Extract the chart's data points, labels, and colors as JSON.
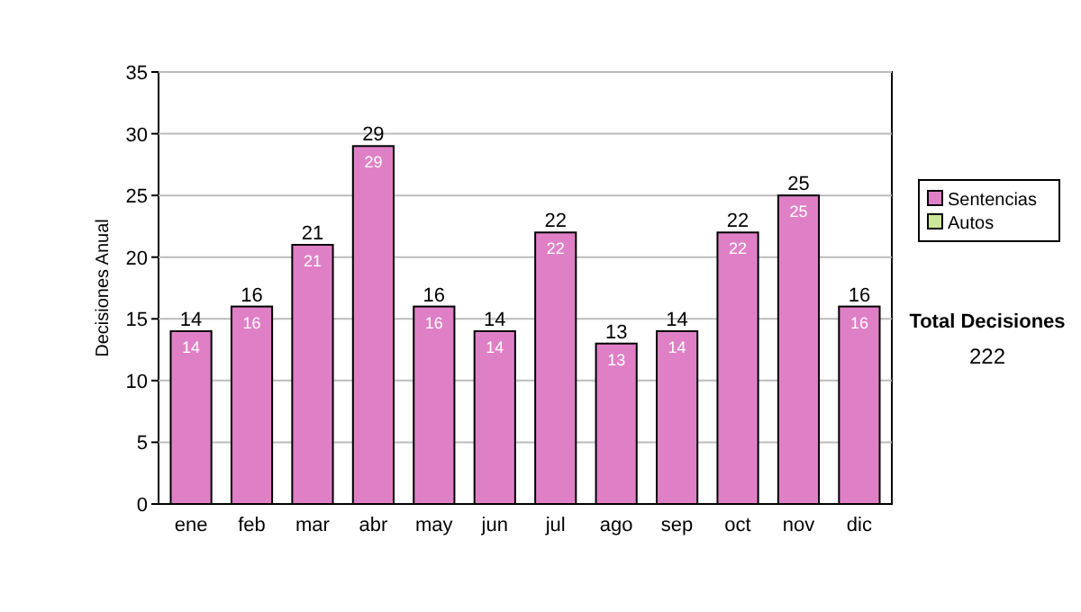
{
  "chart_data": {
    "type": "bar",
    "ylabel": "Decisiones Anual",
    "categories": [
      "ene",
      "feb",
      "mar",
      "abr",
      "may",
      "jun",
      "jul",
      "ago",
      "sep",
      "oct",
      "nov",
      "dic"
    ],
    "series": [
      {
        "name": "Sentencias",
        "color": "#df80c6",
        "values": [
          14,
          16,
          21,
          29,
          16,
          14,
          22,
          13,
          14,
          22,
          25,
          16
        ]
      },
      {
        "name": "Autos",
        "color": "#cce699",
        "values": [
          null,
          null,
          null,
          null,
          null,
          null,
          null,
          null,
          null,
          null,
          null,
          null
        ]
      }
    ],
    "stacked": true,
    "data_labels": true,
    "totals": [
      "14",
      "16",
      "21",
      "29",
      "16",
      "14",
      "22",
      "13",
      "14",
      "22",
      "25",
      "16"
    ],
    "ylim": [
      0,
      35
    ],
    "yticks": [
      0,
      5,
      10,
      15,
      20,
      25,
      30,
      35
    ],
    "grid": "y",
    "legend": "right",
    "annotations": [
      "Total Decisiones",
      "222"
    ]
  }
}
